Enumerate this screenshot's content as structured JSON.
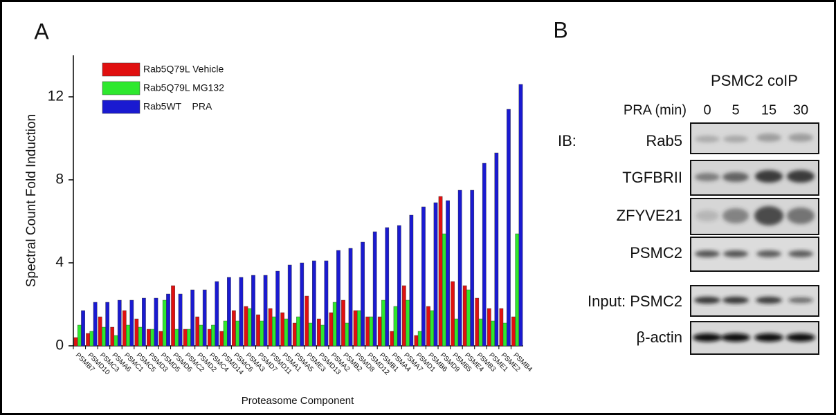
{
  "chart_data": {
    "type": "bar",
    "panel_label": "A",
    "y_label": "Spectral Count Fold Induction",
    "x_label": "Proteasome Component",
    "categories": [
      "PSMB7",
      "PSMD10",
      "PSMC3",
      "PSMA6",
      "PSMC1",
      "PSMC5",
      "PSMD3",
      "PSMD5",
      "PSMD6",
      "PSMC2",
      "PSMD2",
      "PSMC4",
      "PSMD14",
      "PSMC6",
      "PSMA3",
      "PSMD7",
      "PSMD11",
      "PSMA1",
      "PSMA5",
      "PSME3",
      "PSMD13",
      "PSMA2",
      "PSMB2",
      "PSMD8",
      "PSMD12",
      "PSMB1",
      "PSMA4",
      "PSMA7",
      "PSMD1",
      "PSMB6",
      "PSMD9",
      "PSMB5",
      "PSME4",
      "PSMB3",
      "PSME1",
      "PSME2",
      "PSMB4"
    ],
    "series": [
      {
        "name": "Rab5Q79L Vehicle",
        "color": "#e01010",
        "values": [
          0.4,
          0.6,
          1.4,
          0.9,
          1.7,
          1.3,
          0.8,
          0.7,
          2.9,
          0.8,
          1.4,
          0.8,
          0.7,
          1.7,
          1.9,
          1.5,
          1.8,
          1.6,
          1.1,
          2.4,
          1.3,
          1.6,
          2.2,
          1.7,
          1.4,
          1.4,
          0.7,
          2.9,
          0.5,
          1.9,
          7.2,
          3.1,
          2.9,
          2.3,
          1.8,
          1.8,
          1.4
        ]
      },
      {
        "name": "Rab5Q79L MG132",
        "color": "#2ee82e",
        "values": [
          1.0,
          0.7,
          0.9,
          0.5,
          1.0,
          0.9,
          0.8,
          2.2,
          0.8,
          0.8,
          1.0,
          1.0,
          1.2,
          1.2,
          1.8,
          1.2,
          1.4,
          1.3,
          1.4,
          1.1,
          1.0,
          2.1,
          1.1,
          1.7,
          1.4,
          2.2,
          1.9,
          2.2,
          0.7,
          1.7,
          5.4,
          1.3,
          2.7,
          1.3,
          1.2,
          1.1,
          5.4
        ]
      },
      {
        "name": "Rab5WT    PRA",
        "color": "#1a1ad0",
        "values": [
          1.7,
          2.1,
          2.1,
          2.2,
          2.2,
          2.3,
          2.3,
          2.5,
          2.5,
          2.7,
          2.7,
          3.1,
          3.3,
          3.3,
          3.4,
          3.4,
          3.6,
          3.9,
          4.0,
          4.1,
          4.1,
          4.6,
          4.7,
          5.0,
          5.5,
          5.7,
          5.8,
          6.3,
          6.7,
          6.9,
          7.0,
          7.5,
          7.5,
          8.8,
          9.3,
          11.4,
          12.6
        ]
      }
    ],
    "ylim": [
      0,
      14
    ],
    "yticks": [
      0,
      4,
      8,
      12
    ],
    "legend": "top-left"
  },
  "blot": {
    "panel_label": "B",
    "header": "PSMC2 coIP",
    "treatment": "PRA (min)",
    "lanes": [
      "0",
      "5",
      "15",
      "30"
    ],
    "ib_label": "IB:",
    "rows": [
      "Rab5",
      "TGFBRII",
      "ZFYVE21",
      "PSMC2",
      "Input: PSMC2",
      "β-actin"
    ]
  }
}
